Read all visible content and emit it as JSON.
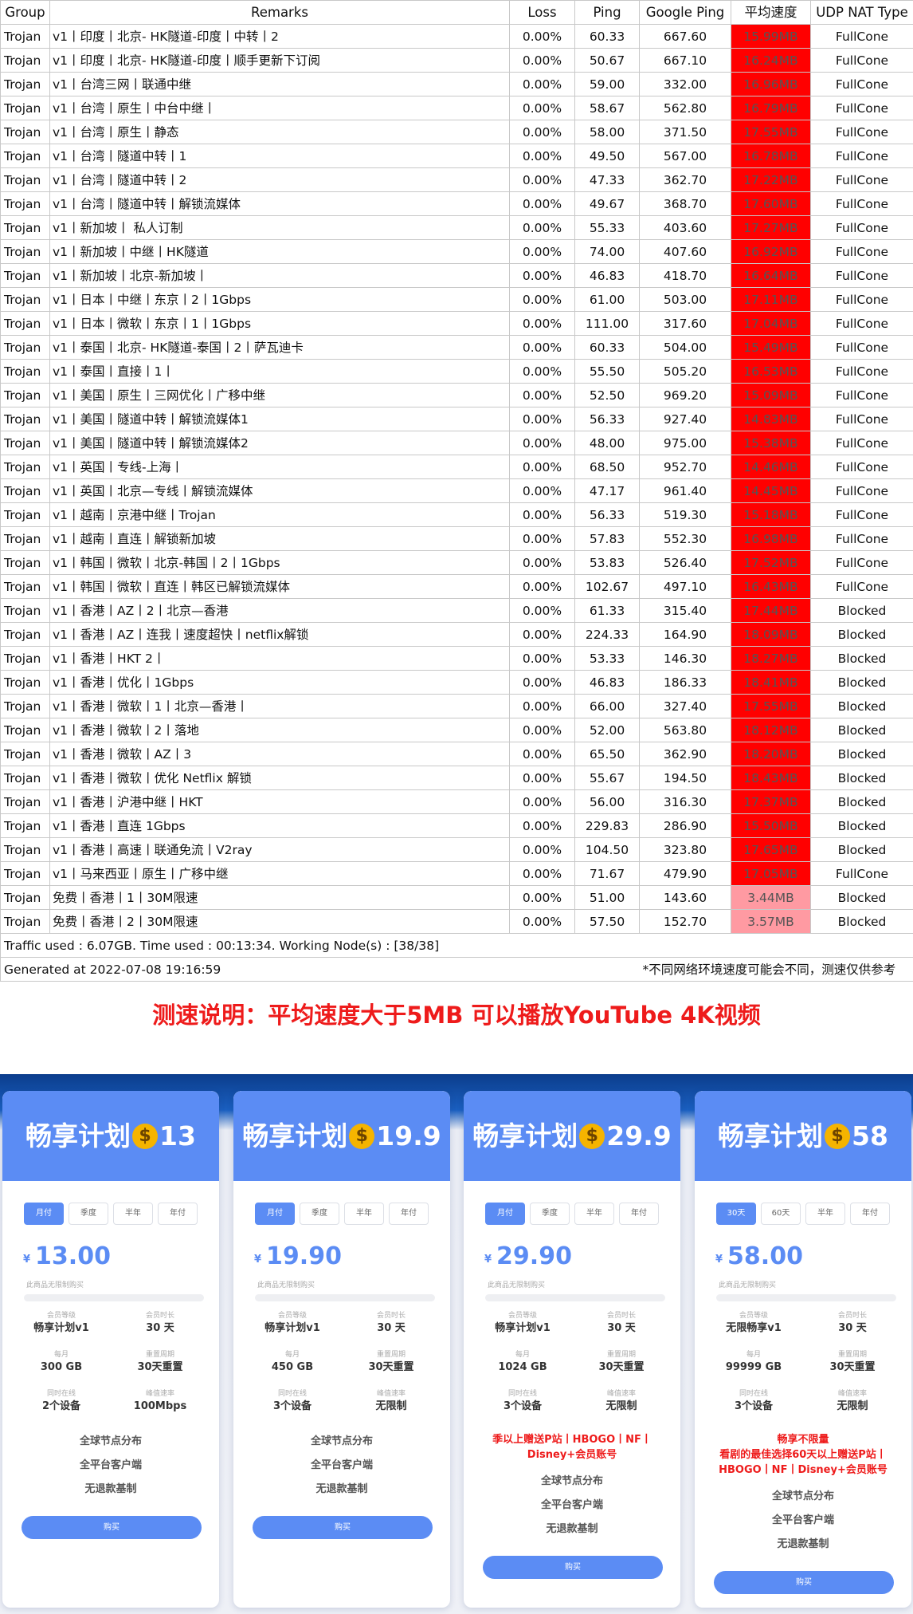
{
  "table": {
    "headers": [
      "Group",
      "Remarks",
      "Loss",
      "Ping",
      "Google Ping",
      "平均速度",
      "UDP NAT Type"
    ],
    "rows": [
      [
        "Trojan",
        "v1丨印度丨北京- HK隧道-印度丨中转丨2",
        "0.00%",
        "60.33",
        "667.60",
        "15.99MB",
        "FullCone"
      ],
      [
        "Trojan",
        "v1丨印度丨北京- HK隧道-印度丨顺手更新下订阅",
        "0.00%",
        "50.67",
        "667.10",
        "16.24MB",
        "FullCone"
      ],
      [
        "Trojan",
        "v1丨台湾三网丨联通中继",
        "0.00%",
        "59.00",
        "332.00",
        "16.96MB",
        "FullCone"
      ],
      [
        "Trojan",
        "v1丨台湾丨原生丨中台中继丨",
        "0.00%",
        "58.67",
        "562.80",
        "16.79MB",
        "FullCone"
      ],
      [
        "Trojan",
        "v1丨台湾丨原生丨静态",
        "0.00%",
        "58.00",
        "371.50",
        "17.55MB",
        "FullCone"
      ],
      [
        "Trojan",
        "v1丨台湾丨隧道中转丨1",
        "0.00%",
        "49.50",
        "567.00",
        "16.78MB",
        "FullCone"
      ],
      [
        "Trojan",
        "v1丨台湾丨隧道中转丨2",
        "0.00%",
        "47.33",
        "362.70",
        "17.22MB",
        "FullCone"
      ],
      [
        "Trojan",
        "v1丨台湾丨隧道中转丨解锁流媒体",
        "0.00%",
        "49.67",
        "368.70",
        "17.60MB",
        "FullCone"
      ],
      [
        "Trojan",
        "v1丨新加坡丨 私人订制",
        "0.00%",
        "55.33",
        "403.60",
        "17.27MB",
        "FullCone"
      ],
      [
        "Trojan",
        "v1丨新加坡丨中继丨HK隧道",
        "0.00%",
        "74.00",
        "407.60",
        "16.92MB",
        "FullCone"
      ],
      [
        "Trojan",
        "v1丨新加坡丨北京-新加坡丨",
        "0.00%",
        "46.83",
        "418.70",
        "16.64MB",
        "FullCone"
      ],
      [
        "Trojan",
        "v1丨日本丨中继丨东京丨2丨1Gbps",
        "0.00%",
        "61.00",
        "503.00",
        "17.11MB",
        "FullCone"
      ],
      [
        "Trojan",
        "v1丨日本丨微软丨东京丨1丨1Gbps",
        "0.00%",
        "111.00",
        "317.60",
        "17.04MB",
        "FullCone"
      ],
      [
        "Trojan",
        "v1丨泰国丨北京- HK隧道-泰国丨2丨萨瓦迪卡",
        "0.00%",
        "60.33",
        "504.00",
        "15.49MB",
        "FullCone"
      ],
      [
        "Trojan",
        "v1丨泰国丨直接丨1丨",
        "0.00%",
        "55.50",
        "505.20",
        "16.53MB",
        "FullCone"
      ],
      [
        "Trojan",
        "v1丨美国丨原生丨三网优化丨广移中继",
        "0.00%",
        "52.50",
        "969.20",
        "15.09MB",
        "FullCone"
      ],
      [
        "Trojan",
        "v1丨美国丨隧道中转丨解锁流媒体1",
        "0.00%",
        "56.33",
        "927.40",
        "14.83MB",
        "FullCone"
      ],
      [
        "Trojan",
        "v1丨美国丨隧道中转丨解锁流媒体2",
        "0.00%",
        "48.00",
        "975.00",
        "15.38MB",
        "FullCone"
      ],
      [
        "Trojan",
        "v1丨英国丨专线-上海丨",
        "0.00%",
        "68.50",
        "952.70",
        "14.46MB",
        "FullCone"
      ],
      [
        "Trojan",
        "v1丨英国丨北京—专线丨解锁流媒体",
        "0.00%",
        "47.17",
        "961.40",
        "14.45MB",
        "FullCone"
      ],
      [
        "Trojan",
        "v1丨越南丨京港中继丨Trojan",
        "0.00%",
        "56.33",
        "519.30",
        "15.18MB",
        "FullCone"
      ],
      [
        "Trojan",
        "v1丨越南丨直连丨解锁新加坡",
        "0.00%",
        "57.83",
        "552.30",
        "16.98MB",
        "FullCone"
      ],
      [
        "Trojan",
        "v1丨韩国丨微软丨北京-韩国丨2丨1Gbps",
        "0.00%",
        "53.83",
        "526.40",
        "17.52MB",
        "FullCone"
      ],
      [
        "Trojan",
        "v1丨韩国丨微软丨直连丨韩区已解锁流媒体",
        "0.00%",
        "102.67",
        "497.10",
        "16.43MB",
        "FullCone"
      ],
      [
        "Trojan",
        "v1丨香港丨AZ丨2丨北京—香港",
        "0.00%",
        "61.33",
        "315.40",
        "17.44MB",
        "Blocked"
      ],
      [
        "Trojan",
        "v1丨香港丨AZ丨连我丨速度超快丨netflix解锁",
        "0.00%",
        "224.33",
        "164.90",
        "18.09MB",
        "Blocked"
      ],
      [
        "Trojan",
        "v1丨香港丨HKT 2丨",
        "0.00%",
        "53.33",
        "146.30",
        "18.27MB",
        "Blocked"
      ],
      [
        "Trojan",
        "v1丨香港丨优化丨1Gbps",
        "0.00%",
        "46.83",
        "186.33",
        "18.41MB",
        "Blocked"
      ],
      [
        "Trojan",
        "v1丨香港丨微软丨1丨北京—香港丨",
        "0.00%",
        "66.00",
        "327.40",
        "17.55MB",
        "Blocked"
      ],
      [
        "Trojan",
        "v1丨香港丨微软丨2丨落地",
        "0.00%",
        "52.00",
        "563.80",
        "18.12MB",
        "Blocked"
      ],
      [
        "Trojan",
        "v1丨香港丨微软丨AZ丨3",
        "0.00%",
        "65.50",
        "362.90",
        "18.20MB",
        "Blocked"
      ],
      [
        "Trojan",
        "v1丨香港丨微软丨优化  Netflix 解锁",
        "0.00%",
        "55.67",
        "194.50",
        "18.43MB",
        "Blocked"
      ],
      [
        "Trojan",
        "v1丨香港丨沪港中继丨HKT",
        "0.00%",
        "56.00",
        "316.30",
        "17.37MB",
        "Blocked"
      ],
      [
        "Trojan",
        "v1丨香港丨直连 1Gbps",
        "0.00%",
        "229.83",
        "286.90",
        "15.50MB",
        "Blocked"
      ],
      [
        "Trojan",
        "v1丨香港丨高速丨联通免流丨V2ray",
        "0.00%",
        "104.50",
        "323.80",
        "17.65MB",
        "Blocked"
      ],
      [
        "Trojan",
        "v1丨马来西亚丨原生丨广移中继",
        "0.00%",
        "71.67",
        "479.90",
        "17.05MB",
        "FullCone"
      ],
      [
        "Trojan",
        "免费丨香港丨1丨30M限速",
        "0.00%",
        "51.00",
        "143.60",
        "3.44MB",
        "Blocked"
      ],
      [
        "Trojan",
        "免费丨香港丨2丨30M限速",
        "0.00%",
        "57.50",
        "152.70",
        "3.57MB",
        "Blocked"
      ]
    ],
    "traffic_line": "Traffic used : 6.07GB. Time used : 00:13:34. Working Node(s) : [38/38]",
    "generated_at": "Generated at 2022-07-08 19:16:59",
    "disclaimer": "*不同网络环境速度可能会不同，测速仅供参考",
    "speed_colors": {
      "fast": "#ff0000",
      "slow": "#ff9aa2"
    }
  },
  "note": "测速说明：平均速度大于5MB 可以播放YouTube 4K视频",
  "colors": {
    "accent": "#5b8cf4",
    "note_red": "#ee1b1b",
    "band_dark": "#0b3d8c"
  },
  "plans": [
    {
      "name": "畅享计划",
      "tier": "13",
      "icon": "money-bag-icon",
      "tabs": [
        "月付",
        "季度",
        "半年",
        "年付"
      ],
      "currency": "¥",
      "price": "13.00",
      "limit_text": "此商品无限制购买",
      "stats": [
        {
          "key": "会员等级",
          "value": "畅享计划v1"
        },
        {
          "key": "会员时长",
          "value": "30 天"
        },
        {
          "key": "每月",
          "value": "300 GB"
        },
        {
          "key": "重置周期",
          "value": "30天重置"
        },
        {
          "key": "同时在线",
          "value": "2个设备"
        },
        {
          "key": "峰值速率",
          "value": "100Mbps"
        }
      ],
      "promo": "",
      "features": [
        "全球节点分布",
        "全平台客户端",
        "无退款基制"
      ],
      "buy": "购买"
    },
    {
      "name": "畅享计划",
      "tier": "19.9",
      "icon": "money-bag-icon",
      "tabs": [
        "月付",
        "季度",
        "半年",
        "年付"
      ],
      "currency": "¥",
      "price": "19.90",
      "limit_text": "此商品无限制购买",
      "stats": [
        {
          "key": "会员等级",
          "value": "畅享计划v1"
        },
        {
          "key": "会员时长",
          "value": "30 天"
        },
        {
          "key": "每月",
          "value": "450 GB"
        },
        {
          "key": "重置周期",
          "value": "30天重置"
        },
        {
          "key": "同时在线",
          "value": "3个设备"
        },
        {
          "key": "峰值速率",
          "value": "无限制"
        }
      ],
      "promo": "",
      "features": [
        "全球节点分布",
        "全平台客户端",
        "无退款基制"
      ],
      "buy": "购买"
    },
    {
      "name": "畅享计划",
      "tier": "29.9",
      "icon": "money-bag-icon",
      "tabs": [
        "月付",
        "季度",
        "半年",
        "年付"
      ],
      "currency": "¥",
      "price": "29.90",
      "limit_text": "此商品无限制购买",
      "stats": [
        {
          "key": "会员等级",
          "value": "畅享计划v1"
        },
        {
          "key": "会员时长",
          "value": "30 天"
        },
        {
          "key": "每月",
          "value": "1024 GB"
        },
        {
          "key": "重置周期",
          "value": "30天重置"
        },
        {
          "key": "同时在线",
          "value": "3个设备"
        },
        {
          "key": "峰值速率",
          "value": "无限制"
        }
      ],
      "promo": "季以上赠送P站丨HBOGO丨NF丨\nDisney+会员账号",
      "features": [
        "全球节点分布",
        "全平台客户端",
        "无退款基制"
      ],
      "buy": "购买"
    },
    {
      "name": "畅享计划",
      "tier": "58",
      "icon": "money-bag-icon",
      "tabs": [
        "30天",
        "60天",
        "半年",
        "年付"
      ],
      "currency": "¥",
      "price": "58.00",
      "limit_text": "此商品无限制购买",
      "stats": [
        {
          "key": "会员等级",
          "value": "无限畅享v1"
        },
        {
          "key": "会员时长",
          "value": "30 天"
        },
        {
          "key": "每月",
          "value": "99999 GB"
        },
        {
          "key": "重置周期",
          "value": "30天重置"
        },
        {
          "key": "同时在线",
          "value": "3个设备"
        },
        {
          "key": "峰值速率",
          "value": "无限制"
        }
      ],
      "promo": "畅享不限量\n看剧的最佳选择60天以上赠送P站丨\nHBOGO丨NF丨Disney+会员账号",
      "features": [
        "全球节点分布",
        "全平台客户端",
        "无退款基制"
      ],
      "buy": "购买"
    }
  ]
}
